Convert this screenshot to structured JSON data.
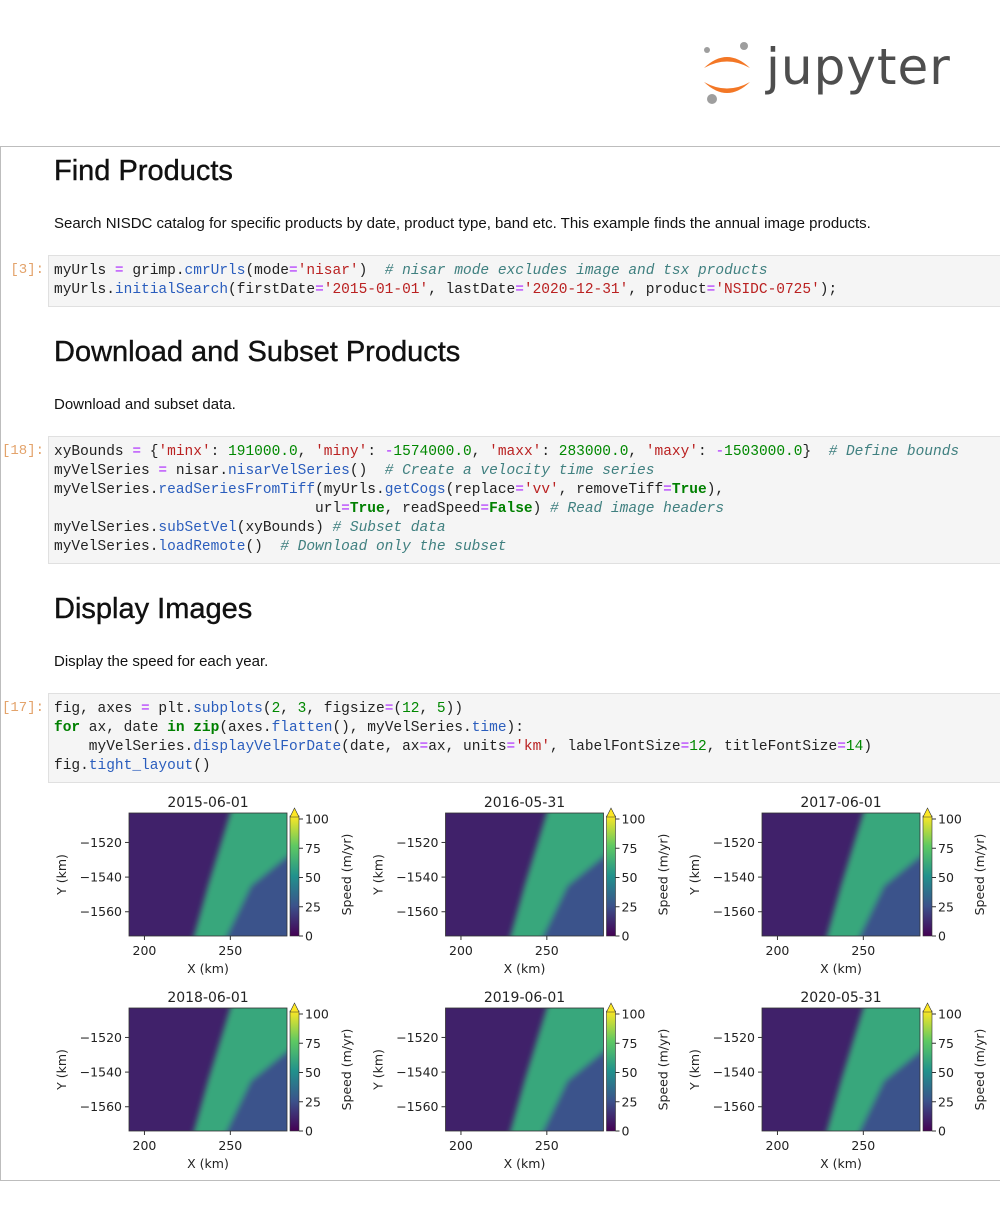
{
  "logo": {
    "text": "jupyter",
    "orange": "#f37726",
    "gray": "#9e9e9e"
  },
  "cells": [
    {
      "type": "heading",
      "text": "Find Products"
    },
    {
      "type": "text",
      "text": "Search NISDC catalog for specific products by date, product type, band etc. This example finds the annual image products."
    },
    {
      "type": "code",
      "prompt": "[3]:",
      "lines": [
        [
          [
            "myUrls ",
            ""
          ],
          [
            "=",
            "o"
          ],
          [
            " grimp.",
            ""
          ],
          [
            "cmrUrls",
            "f"
          ],
          [
            "(mode",
            ""
          ],
          [
            "=",
            "o"
          ],
          [
            "'nisar'",
            "s"
          ],
          [
            ")  ",
            ""
          ],
          [
            "# nisar mode excludes image and tsx products",
            "c"
          ]
        ],
        [
          [
            "myUrls.",
            ""
          ],
          [
            "initialSearch",
            "f"
          ],
          [
            "(firstDate",
            ""
          ],
          [
            "=",
            "o"
          ],
          [
            "'2015-01-01'",
            "s"
          ],
          [
            ", lastDate",
            ""
          ],
          [
            "=",
            "o"
          ],
          [
            "'2020-12-31'",
            "s"
          ],
          [
            ", product",
            ""
          ],
          [
            "=",
            "o"
          ],
          [
            "'NSIDC-0725'",
            "s"
          ],
          [
            ");",
            ""
          ]
        ]
      ]
    },
    {
      "type": "heading",
      "text": "Download and Subset Products"
    },
    {
      "type": "text",
      "text": "Download and subset data."
    },
    {
      "type": "code",
      "prompt": "[18]:",
      "lines": [
        [
          [
            "xyBounds ",
            ""
          ],
          [
            "=",
            "o"
          ],
          [
            " {",
            ""
          ],
          [
            "'minx'",
            "s"
          ],
          [
            ": ",
            ""
          ],
          [
            "191000.0",
            "n"
          ],
          [
            ", ",
            ""
          ],
          [
            "'miny'",
            "s"
          ],
          [
            ": ",
            ""
          ],
          [
            "-",
            "o"
          ],
          [
            "1574000.0",
            "n"
          ],
          [
            ", ",
            ""
          ],
          [
            "'maxx'",
            "s"
          ],
          [
            ": ",
            ""
          ],
          [
            "283000.0",
            "n"
          ],
          [
            ", ",
            ""
          ],
          [
            "'maxy'",
            "s"
          ],
          [
            ": ",
            ""
          ],
          [
            "-",
            "o"
          ],
          [
            "1503000.0",
            "n"
          ],
          [
            "}  ",
            ""
          ],
          [
            "# Define bounds",
            "c"
          ]
        ],
        [
          [
            "myVelSeries ",
            ""
          ],
          [
            "=",
            "o"
          ],
          [
            " nisar.",
            ""
          ],
          [
            "nisarVelSeries",
            "f"
          ],
          [
            "()  ",
            ""
          ],
          [
            "# Create a velocity time series",
            "c"
          ]
        ],
        [
          [
            "myVelSeries.",
            ""
          ],
          [
            "readSeriesFromTiff",
            "f"
          ],
          [
            "(myUrls.",
            ""
          ],
          [
            "getCogs",
            "f"
          ],
          [
            "(replace",
            ""
          ],
          [
            "=",
            "o"
          ],
          [
            "'vv'",
            "s"
          ],
          [
            ", removeTiff",
            ""
          ],
          [
            "=",
            "o"
          ],
          [
            "True",
            "k"
          ],
          [
            "),",
            ""
          ]
        ],
        [
          [
            "                              url",
            ""
          ],
          [
            "=",
            "o"
          ],
          [
            "True",
            "k"
          ],
          [
            ", readSpeed",
            ""
          ],
          [
            "=",
            "o"
          ],
          [
            "False",
            "k"
          ],
          [
            ") ",
            ""
          ],
          [
            "# Read image headers",
            "c"
          ]
        ],
        [
          [
            "myVelSeries.",
            ""
          ],
          [
            "subSetVel",
            "f"
          ],
          [
            "(xyBounds) ",
            ""
          ],
          [
            "# Subset data",
            "c"
          ]
        ],
        [
          [
            "myVelSeries.",
            ""
          ],
          [
            "loadRemote",
            "f"
          ],
          [
            "()  ",
            ""
          ],
          [
            "# Download only the subset",
            "c"
          ]
        ]
      ]
    },
    {
      "type": "heading",
      "text": "Display Images"
    },
    {
      "type": "text",
      "text": "Display the speed for each year."
    },
    {
      "type": "code",
      "prompt": "[17]:",
      "lines": [
        [
          [
            "fig, axes ",
            ""
          ],
          [
            "=",
            "o"
          ],
          [
            " plt.",
            ""
          ],
          [
            "subplots",
            "f"
          ],
          [
            "(",
            ""
          ],
          [
            "2",
            "n"
          ],
          [
            ", ",
            ""
          ],
          [
            "3",
            "n"
          ],
          [
            ", figsize",
            ""
          ],
          [
            "=",
            "o"
          ],
          [
            "(",
            ""
          ],
          [
            "12",
            "n"
          ],
          [
            ", ",
            ""
          ],
          [
            "5",
            "n"
          ],
          [
            "))",
            ""
          ]
        ],
        [
          [
            "for",
            "k"
          ],
          [
            " ax, date ",
            ""
          ],
          [
            "in",
            "k"
          ],
          [
            " ",
            ""
          ],
          [
            "zip",
            "k"
          ],
          [
            "(axes.",
            ""
          ],
          [
            "flatten",
            "f"
          ],
          [
            "(), myVelSeries.",
            ""
          ],
          [
            "time",
            "f"
          ],
          [
            "):",
            ""
          ]
        ],
        [
          [
            "    myVelSeries.",
            ""
          ],
          [
            "displayVelForDate",
            "f"
          ],
          [
            "(date, ax",
            ""
          ],
          [
            "=",
            "o"
          ],
          [
            "ax, units",
            ""
          ],
          [
            "=",
            "o"
          ],
          [
            "'km'",
            "s"
          ],
          [
            ", labelFontSize",
            ""
          ],
          [
            "=",
            "o"
          ],
          [
            "12",
            "n"
          ],
          [
            ", titleFontSize",
            ""
          ],
          [
            "=",
            "o"
          ],
          [
            "14",
            "n"
          ],
          [
            ")",
            ""
          ]
        ],
        [
          [
            "fig.",
            ""
          ],
          [
            "tight_layout",
            "f"
          ],
          [
            "()",
            ""
          ]
        ]
      ]
    }
  ],
  "chart_data": {
    "type": "heatmap",
    "panels": [
      {
        "title": "2015-06-01"
      },
      {
        "title": "2016-05-31"
      },
      {
        "title": "2017-06-01"
      },
      {
        "title": "2018-06-01"
      },
      {
        "title": "2019-06-01"
      },
      {
        "title": "2020-05-31"
      }
    ],
    "xlabel": "X (km)",
    "ylabel": "Y (km)",
    "xlim": [
      191,
      283
    ],
    "ylim": [
      -1574,
      -1503
    ],
    "xticks": [
      "200",
      "250"
    ],
    "xtick_values": [
      200,
      250
    ],
    "yticks": [
      "−1520",
      "−1540",
      "−1560"
    ],
    "ytick_values": [
      -1520,
      -1540,
      -1560
    ],
    "colorbar": {
      "label": "Speed (m/yr)",
      "ticks": [
        "0",
        "25",
        "50",
        "75",
        "100"
      ],
      "tick_values": [
        0,
        25,
        50,
        75,
        100
      ],
      "range": [
        0,
        100
      ],
      "colormap": "viridis",
      "extend": "max"
    },
    "regions": {
      "background_speed": 10,
      "glacier_speed": 60,
      "glacier_outline_km": [
        [
          253,
          -1503
        ],
        [
          283,
          -1503
        ],
        [
          283,
          -1520
        ],
        [
          262,
          -1545
        ],
        [
          243,
          -1574
        ],
        [
          226,
          -1574
        ],
        [
          237,
          -1545
        ]
      ],
      "lower_right_speed": 25,
      "lower_right_outline_km": [
        [
          283,
          -1520
        ],
        [
          283,
          -1574
        ],
        [
          243,
          -1574
        ],
        [
          262,
          -1545
        ]
      ]
    }
  }
}
